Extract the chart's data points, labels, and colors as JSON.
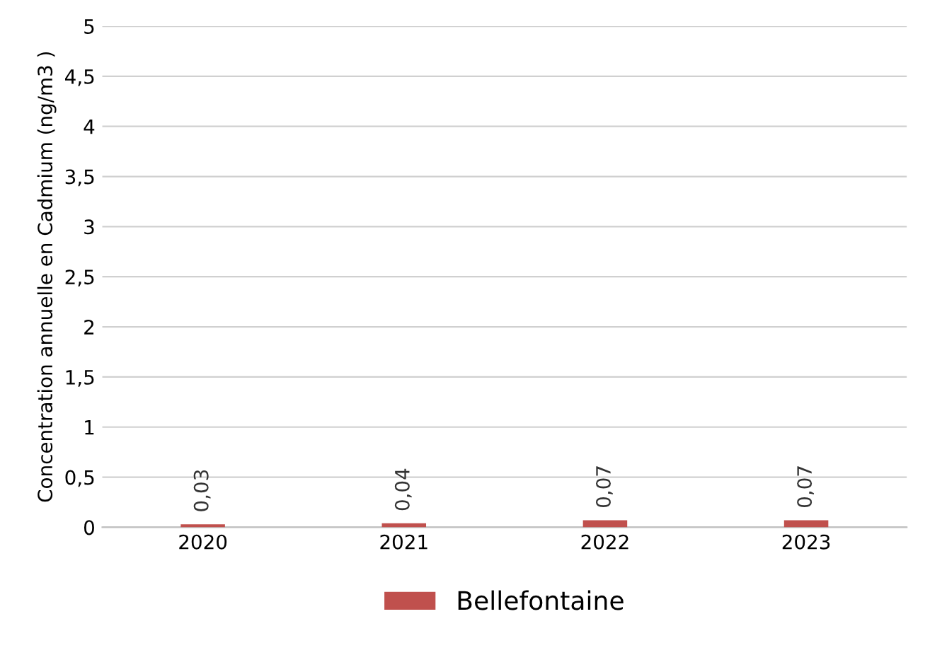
{
  "chart_data": {
    "type": "bar",
    "ylabel": "Concentration annuelle en Cadmium (ng/m3 )",
    "categories": [
      "2020",
      "2021",
      "2022",
      "2023"
    ],
    "series": [
      {
        "name": "Bellefontaine",
        "color": "#c0504d",
        "values": [
          0.03,
          0.04,
          0.07,
          0.07
        ],
        "value_labels": [
          "0,03",
          "0,04",
          "0,07",
          "0,07"
        ]
      }
    ],
    "ylim": [
      0,
      5
    ],
    "yticks": [
      0,
      {
        "value": 0.5,
        "label": "0,5"
      },
      1,
      {
        "value": 1.5,
        "label": "1,5"
      },
      2,
      {
        "value": 2.5,
        "label": "2,5"
      },
      3,
      {
        "value": 3.5,
        "label": "3,5"
      },
      4,
      {
        "value": 4.5,
        "label": "4,5"
      },
      5
    ],
    "grid": "y",
    "legend": "bottom"
  }
}
